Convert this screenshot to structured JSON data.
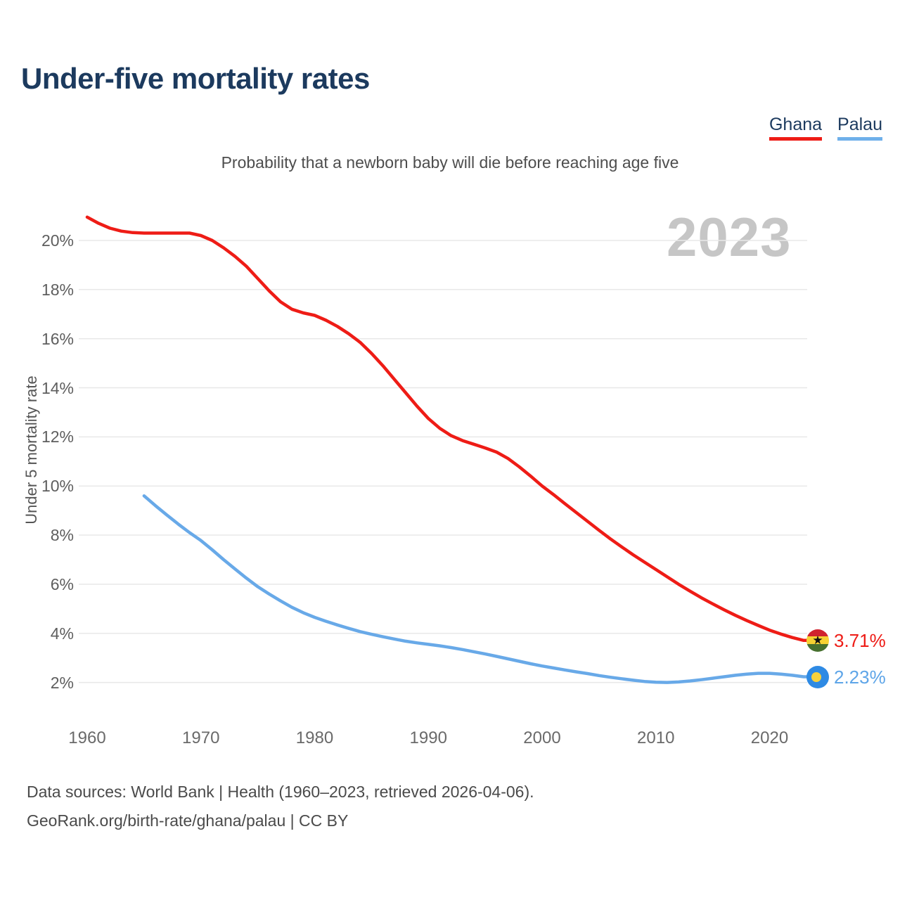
{
  "header": {
    "title": "Under-five mortality rates",
    "subtitle": "Probability that a newborn baby will die before reaching age five"
  },
  "legend": [
    {
      "label": "Ghana",
      "color": "#ee1c16"
    },
    {
      "label": "Palau",
      "color": "#6fb0ea"
    }
  ],
  "watermark": "2023",
  "chart_data": {
    "type": "line",
    "title": "Under-five mortality rates",
    "subtitle": "Probability that a newborn baby will die before reaching age five",
    "xlabel": "",
    "ylabel": "Under 5 mortality rate",
    "x_ticks": [
      1960,
      1970,
      1980,
      1990,
      2000,
      2010,
      2020
    ],
    "y_ticks_percent": [
      2,
      4,
      6,
      8,
      10,
      12,
      14,
      16,
      18,
      20
    ],
    "xlim": [
      1960,
      2023
    ],
    "ylim_percent": [
      0,
      21.8
    ],
    "grid": "horizontal-only",
    "legend_position": "top-right",
    "watermark": "2023",
    "series": [
      {
        "name": "Ghana",
        "color": "#ee1c16",
        "x_start": 1960,
        "x_step": 1,
        "values": [
          20.95,
          20.7,
          20.5,
          20.38,
          20.32,
          20.3,
          20.3,
          20.3,
          20.3,
          20.3,
          20.2,
          20.0,
          19.7,
          19.35,
          18.95,
          18.45,
          17.95,
          17.5,
          17.2,
          17.05,
          16.95,
          16.75,
          16.5,
          16.2,
          15.85,
          15.4,
          14.9,
          14.35,
          13.8,
          13.25,
          12.75,
          12.35,
          12.05,
          11.85,
          11.7,
          11.55,
          11.38,
          11.12,
          10.78,
          10.4,
          10.0,
          9.65,
          9.28,
          8.92,
          8.56,
          8.2,
          7.85,
          7.52,
          7.2,
          6.9,
          6.6,
          6.3,
          6.0,
          5.72,
          5.45,
          5.2,
          4.96,
          4.73,
          4.52,
          4.32,
          4.13,
          3.97,
          3.83,
          3.71
        ],
        "end_label": "3.71%",
        "end_value": 3.71
      },
      {
        "name": "Palau",
        "color": "#68a9e8",
        "x_start": 1965,
        "x_step": 1,
        "values": [
          9.6,
          9.2,
          8.82,
          8.45,
          8.1,
          7.78,
          7.4,
          7.0,
          6.62,
          6.25,
          5.9,
          5.6,
          5.32,
          5.06,
          4.84,
          4.65,
          4.49,
          4.34,
          4.2,
          4.07,
          3.96,
          3.86,
          3.77,
          3.68,
          3.61,
          3.55,
          3.49,
          3.42,
          3.34,
          3.25,
          3.16,
          3.06,
          2.96,
          2.86,
          2.76,
          2.67,
          2.59,
          2.51,
          2.43,
          2.36,
          2.28,
          2.21,
          2.15,
          2.09,
          2.04,
          2.01,
          2.0,
          2.02,
          2.06,
          2.11,
          2.17,
          2.23,
          2.29,
          2.34,
          2.37,
          2.37,
          2.34,
          2.29,
          2.23
        ],
        "end_label": "2.23%",
        "end_value": 2.23
      }
    ]
  },
  "end_labels": {
    "ghana": "3.71%",
    "palau": "2.23%"
  },
  "icons": {
    "ghana_flag": "ghana-flag-icon",
    "ghana_star": "★",
    "palau_flag": "palau-flag-icon"
  },
  "footer": {
    "line1": "Data sources: World Bank | Health (1960–2023, retrieved 2026-04-06).",
    "line2": "GeoRank.org/birth-rate/ghana/palau | CC BY"
  },
  "colors": {
    "title": "#1c3a5e",
    "subtitle_text": "#4d4d4d",
    "axis_text": "#5e5e5e",
    "gridline": "#e8e8e8",
    "watermark": "#c6c6c6",
    "ghana_line": "#ee1c16",
    "palau_line": "#68a9e8"
  }
}
